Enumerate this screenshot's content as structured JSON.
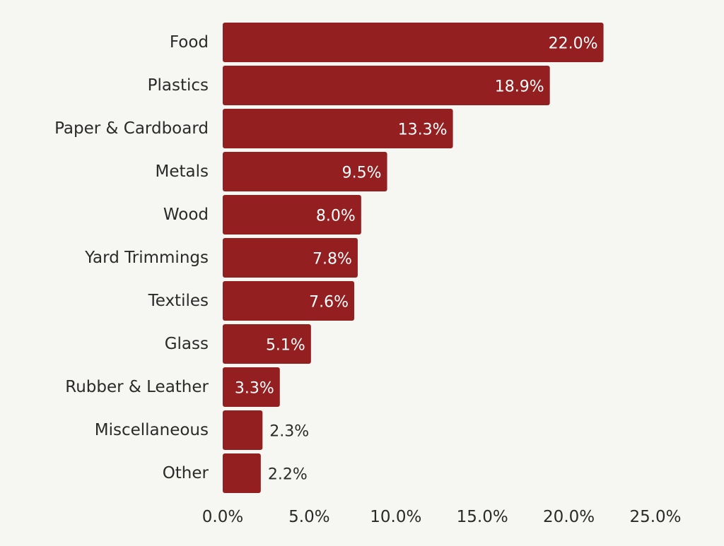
{
  "colors": {
    "background": "#f6f6f2",
    "bar": "#931f21",
    "text": "#2a2a2a",
    "label_inside": "#ffffff",
    "label_outside": "#2a2a2a"
  },
  "chart_data": {
    "type": "bar",
    "orientation": "horizontal",
    "title": "",
    "xlabel": "",
    "ylabel": "",
    "categories": [
      "Food",
      "Plastics",
      "Paper & Cardboard",
      "Metals",
      "Wood",
      "Yard Trimmings",
      "Textiles",
      "Glass",
      "Rubber & Leather",
      "Miscellaneous",
      "Other"
    ],
    "values": [
      22.0,
      18.9,
      13.3,
      9.5,
      8.0,
      7.8,
      7.6,
      5.1,
      3.3,
      2.3,
      2.2
    ],
    "value_labels": [
      "22.0%",
      "18.9%",
      "13.3%",
      "9.5%",
      "8.0%",
      "7.8%",
      "7.6%",
      "5.1%",
      "3.3%",
      "2.3%",
      "2.2%"
    ],
    "xlim": [
      0,
      25
    ],
    "x_ticks": [
      0,
      5,
      10,
      15,
      20,
      25
    ],
    "x_tick_labels": [
      "0.0%",
      "5.0%",
      "10.0%",
      "15.0%",
      "20.0%",
      "25.0%"
    ],
    "grid": false,
    "legend": "none"
  }
}
